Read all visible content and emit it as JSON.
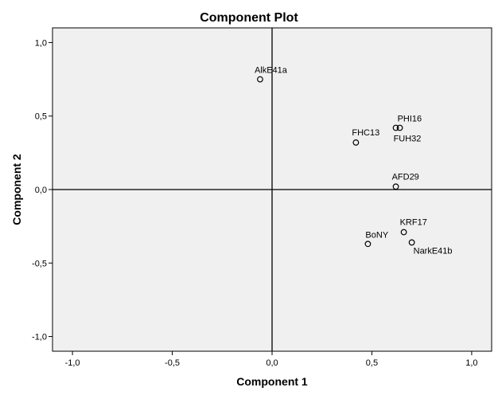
{
  "chart_data": {
    "type": "scatter",
    "title": "Component Plot",
    "xlabel": "Component 1",
    "ylabel": "Component 2",
    "xlim": [
      -1.1,
      1.1
    ],
    "ylim": [
      -1.1,
      1.1
    ],
    "xticks": [
      -1.0,
      -0.5,
      0.0,
      0.5,
      1.0
    ],
    "yticks": [
      -1.0,
      -0.5,
      0.0,
      0.5,
      1.0
    ],
    "xtick_labels": [
      "-1,0",
      "-0,5",
      "0,0",
      "0,5",
      "1,0"
    ],
    "ytick_labels": [
      "-1,0",
      "-0,5",
      "0,0",
      "0,5",
      "1,0"
    ],
    "grid": false,
    "reference_lines": [
      0,
      0
    ],
    "colors": {
      "plot_background": "#f0f0f0",
      "marker": "#000000"
    },
    "points": [
      {
        "label": "AlkE41a",
        "x": -0.06,
        "y": 0.75
      },
      {
        "label": "PHI16",
        "x": 0.64,
        "y": 0.42
      },
      {
        "label": "FUH32",
        "x": 0.62,
        "y": 0.42
      },
      {
        "label": "FHC13",
        "x": 0.42,
        "y": 0.32
      },
      {
        "label": "AFD29",
        "x": 0.62,
        "y": 0.02
      },
      {
        "label": "KRF17",
        "x": 0.66,
        "y": -0.29
      },
      {
        "label": "NarkE41b",
        "x": 0.7,
        "y": -0.36
      },
      {
        "label": "BoNY",
        "x": 0.48,
        "y": -0.37
      }
    ]
  }
}
